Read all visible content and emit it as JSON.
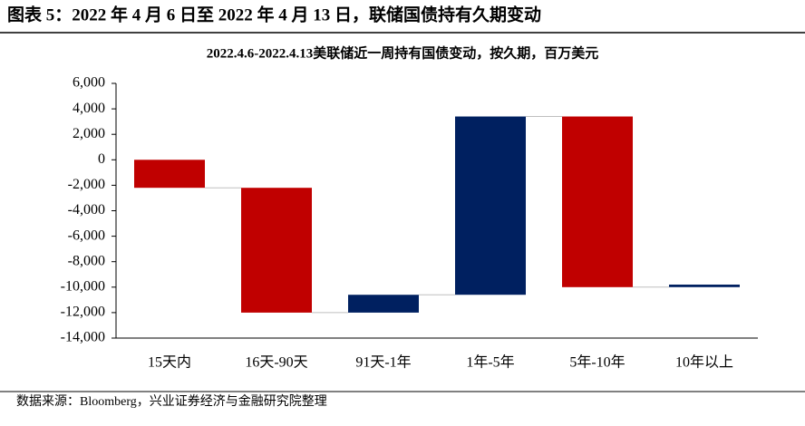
{
  "caption": "图表 5：2022 年 4 月 6 日至 2022 年 4 月 13 日，联储国债持有久期变动",
  "source": "数据来源：Bloomberg，兴业证券经济与金融研究院整理",
  "chart_data": {
    "type": "waterfall",
    "title": "2022.4.6-2022.4.13美联储近一周持有国债变动，按久期，百万美元",
    "categories": [
      "15天内",
      "16天-90天",
      "91天-1年",
      "1年-5年",
      "5年-10年",
      "10年以上"
    ],
    "values": [
      -2200,
      -9800,
      1400,
      14000,
      -13400,
      200
    ],
    "increase_color": "#002060",
    "decrease_color": "#c00000",
    "ylim": [
      -14000,
      6000
    ],
    "yticks": [
      {
        "value": -14000,
        "label": "-14,000"
      },
      {
        "value": -12000,
        "label": "-12,000"
      },
      {
        "value": -10000,
        "label": "-10,000"
      },
      {
        "value": -8000,
        "label": "-8,000"
      },
      {
        "value": -6000,
        "label": "-6,000"
      },
      {
        "value": -4000,
        "label": "-4,000"
      },
      {
        "value": -2000,
        "label": "-2,000"
      },
      0,
      {
        "value": 2000,
        "label": "2,000"
      },
      {
        "value": 4000,
        "label": "4,000"
      },
      {
        "value": 6000,
        "label": "6,000"
      }
    ]
  }
}
